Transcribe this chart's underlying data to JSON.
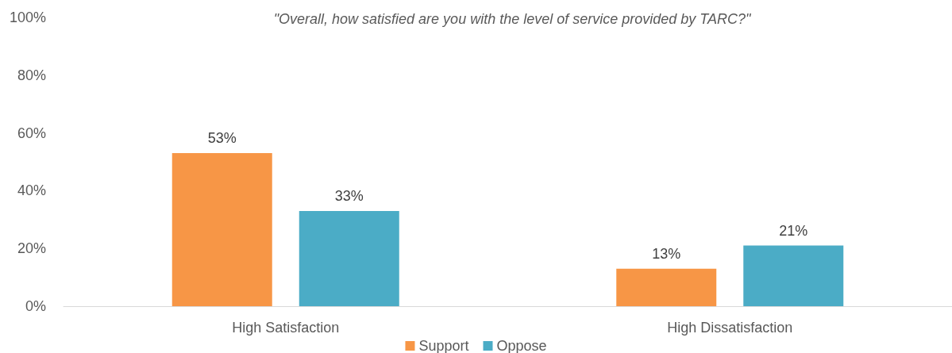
{
  "chart_data": {
    "type": "bar",
    "title": "\"Overall, how satisfied are you with the level of service provided by TARC?\"",
    "categories": [
      "High Satisfaction",
      "High Dissatisfaction"
    ],
    "series": [
      {
        "name": "Support",
        "color": "#f79646",
        "values": [
          53,
          13
        ],
        "value_labels": [
          "53%",
          "13%"
        ]
      },
      {
        "name": "Oppose",
        "color": "#4bacc6",
        "values": [
          33,
          21
        ],
        "value_labels": [
          "33%",
          "21%"
        ]
      }
    ],
    "ylim": [
      0,
      100
    ],
    "yticks": [
      {
        "value": 0,
        "label": "0%"
      },
      {
        "value": 20,
        "label": "20%"
      },
      {
        "value": 40,
        "label": "40%"
      },
      {
        "value": 60,
        "label": "60%"
      },
      {
        "value": 80,
        "label": "80%"
      },
      {
        "value": 100,
        "label": "100%"
      }
    ],
    "grid": false,
    "legend": "bottom"
  }
}
